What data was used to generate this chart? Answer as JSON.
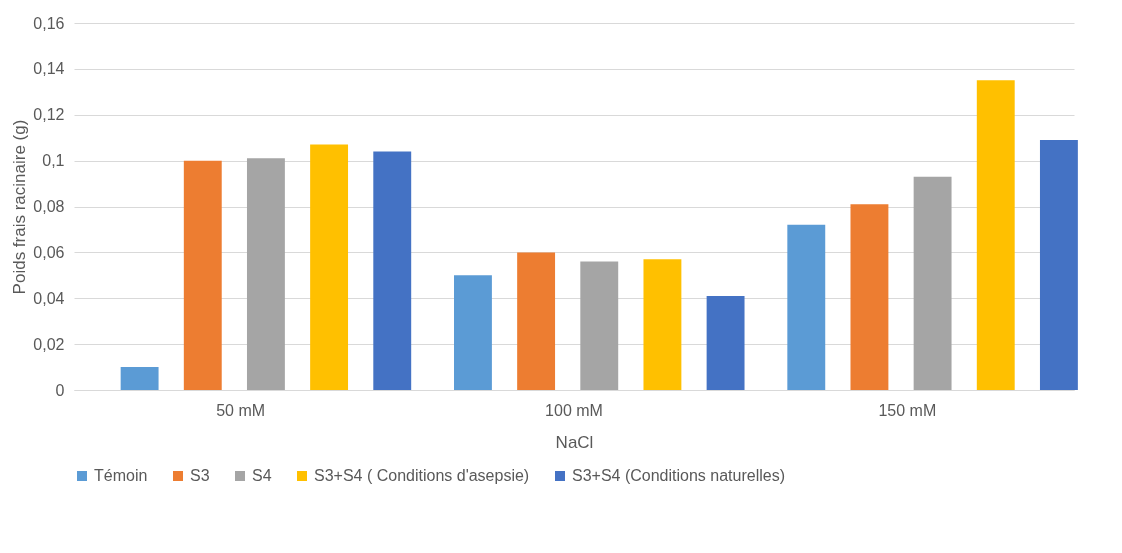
{
  "chart_data": {
    "type": "bar",
    "xlabel": "NaCl",
    "ylabel": "Poids frais racinaire (g)",
    "categories": [
      "50 mM",
      "100 mM",
      "150 mM"
    ],
    "series": [
      {
        "name": "Témoin",
        "color": "#5b9bd5",
        "values": [
          0.01,
          0.05,
          0.072
        ]
      },
      {
        "name": "S3",
        "color": "#ed7d31",
        "values": [
          0.1,
          0.06,
          0.081
        ]
      },
      {
        "name": "S4",
        "color": "#a5a5a5",
        "values": [
          0.101,
          0.056,
          0.093
        ]
      },
      {
        "name": "S3+S4 ( Conditions d'asepsie)",
        "color": "#ffc000",
        "values": [
          0.107,
          0.057,
          0.135
        ]
      },
      {
        "name": "S3+S4 (Conditions naturelles)",
        "color": "#4472c4",
        "values": [
          0.104,
          0.041,
          0.109
        ]
      }
    ],
    "ylim": [
      0,
      0.16
    ],
    "yticks": [
      {
        "value": 0,
        "label": "0"
      },
      {
        "value": 0.02,
        "label": "0,02"
      },
      {
        "value": 0.04,
        "label": "0,04"
      },
      {
        "value": 0.06,
        "label": "0,06"
      },
      {
        "value": 0.08,
        "label": "0,08"
      },
      {
        "value": 0.1,
        "label": "0,1"
      },
      {
        "value": 0.12,
        "label": "0,12"
      },
      {
        "value": 0.14,
        "label": "0,14"
      },
      {
        "value": 0.16,
        "label": "0,16"
      }
    ],
    "grid": "y",
    "legend": "bottom"
  }
}
